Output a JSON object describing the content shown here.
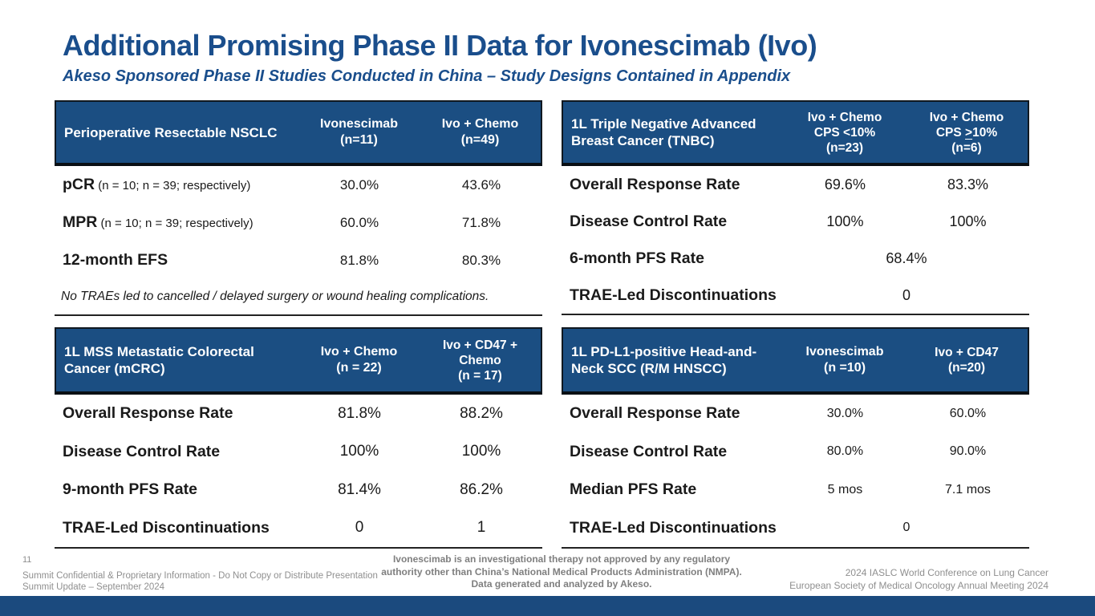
{
  "slide": {
    "title": "Additional Promising Phase II Data for Ivonescimab (Ivo)",
    "subtitle": "Akeso Sponsored Phase II Studies Conducted in China – Study Designs Contained in Appendix",
    "accent_blue": "#1a4e8c",
    "header_bg": "#1b4e82",
    "bar_color": "#1b4a7e"
  },
  "tables": {
    "nsclc": {
      "row_header": "Perioperative Resectable NSCLC",
      "col1": {
        "l1": "Ivonescimab",
        "l2": "(n=11)"
      },
      "col2": {
        "l1": "Ivo + Chemo",
        "l2": "(n=49)"
      },
      "rows": [
        {
          "label": "pCR",
          "label_note": " (n = 10; n = 39; respectively)",
          "v1": "30.0%",
          "v2": "43.6%"
        },
        {
          "label": "MPR",
          "label_note": " (n = 10; n = 39; respectively)",
          "v1": "60.0%",
          "v2": "71.8%"
        },
        {
          "label": "12-month EFS",
          "label_note": "",
          "v1": "81.8%",
          "v2": "80.3%"
        }
      ],
      "note": "No TRAEs led to cancelled / delayed surgery or wound healing complications."
    },
    "tnbc": {
      "row_header": "1L Triple Negative Advanced Breast Cancer (TNBC)",
      "col1": {
        "l1": "Ivo + Chemo",
        "l2": "CPS <10%",
        "l3": "(n=23)"
      },
      "col2": {
        "l1": "Ivo + Chemo",
        "l2_pre": "CPS ",
        "l2_gte": ">",
        "l2_post": "10%",
        "l3": "(n=6)"
      },
      "rows": [
        {
          "label": "Overall Response Rate",
          "v1": "69.6%",
          "v2": "83.3%"
        },
        {
          "label": "Disease Control Rate",
          "v1": "100%",
          "v2": "100%"
        }
      ],
      "span_rows": [
        {
          "label": "6-month PFS Rate",
          "value": "68.4%"
        },
        {
          "label": "TRAE-Led Discontinuations",
          "value": "0"
        }
      ]
    },
    "mcrc": {
      "row_header": "1L MSS Metastatic Colorectal Cancer (mCRC)",
      "col1": {
        "l1": "Ivo + Chemo",
        "l2": "(n = 22)"
      },
      "col2": {
        "l1": "Ivo + CD47 +",
        "l2": "Chemo",
        "l3": "(n = 17)"
      },
      "rows": [
        {
          "label": "Overall Response Rate",
          "v1": "81.8%",
          "v2": "88.2%"
        },
        {
          "label": "Disease Control Rate",
          "v1": "100%",
          "v2": "100%"
        },
        {
          "label": "9-month PFS Rate",
          "v1": "81.4%",
          "v2": "86.2%"
        },
        {
          "label": "TRAE-Led Discontinuations",
          "v1": "0",
          "v2": "1"
        }
      ]
    },
    "hnscc": {
      "row_header": "1L PD-L1-positive Head-and-Neck SCC (R/M HNSCC)",
      "col1": {
        "l1": "Ivonescimab",
        "l2": "(n =10)"
      },
      "col2": {
        "l1": "Ivo + CD47",
        "l2": "(n=20)"
      },
      "rows": [
        {
          "label": "Overall Response Rate",
          "v1": "30.0%",
          "v2": "60.0%"
        },
        {
          "label": "Disease Control Rate",
          "v1": "80.0%",
          "v2": "90.0%"
        },
        {
          "label": "Median PFS Rate",
          "v1": "5 mos",
          "v2": "7.1 mos"
        }
      ],
      "span_rows": [
        {
          "label": "TRAE-Led Discontinuations",
          "value": "0"
        }
      ]
    }
  },
  "footer": {
    "page_number": "11",
    "left_line1": "Summit Confidential & Proprietary Information  - Do Not Copy or Distribute Presentation",
    "left_line2": "Summit Update – September 2024",
    "center_line1": "Ivonescimab is an investigational therapy not approved by any regulatory",
    "center_line2": "authority other than China’s National Medical Products Administration (NMPA).",
    "center_line3": "Data generated and analyzed by Akeso.",
    "right_line1": "2024 IASLC World Conference on Lung Cancer",
    "right_line2": "European Society of Medical Oncology Annual Meeting 2024"
  }
}
